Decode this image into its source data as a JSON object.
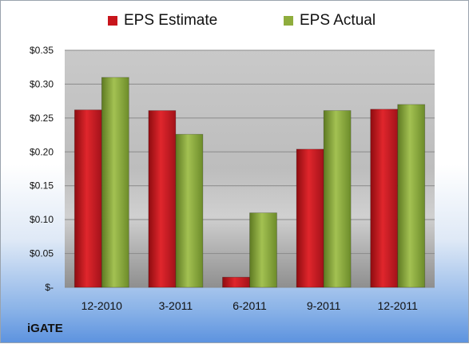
{
  "company_label": "iGATE",
  "chart_data": {
    "type": "bar",
    "categories": [
      "12-2010",
      "3-2011",
      "6-2011",
      "9-2011",
      "12-2011"
    ],
    "series": [
      {
        "name": "EPS Estimate",
        "color": "#c8151c",
        "values": [
          0.262,
          0.261,
          0.015,
          0.204,
          0.263
        ]
      },
      {
        "name": "EPS Actual",
        "color": "#8fad3d",
        "values": [
          0.31,
          0.226,
          0.11,
          0.261,
          0.27
        ]
      }
    ],
    "ylim": [
      0,
      0.35
    ],
    "yticks": [
      {
        "value": 0,
        "label": "$-"
      },
      {
        "value": 0.05,
        "label": "$0.05"
      },
      {
        "value": 0.1,
        "label": "$0.10"
      },
      {
        "value": 0.15,
        "label": "$0.15"
      },
      {
        "value": 0.2,
        "label": "$0.20"
      },
      {
        "value": 0.25,
        "label": "$0.25"
      },
      {
        "value": 0.3,
        "label": "$0.30"
      },
      {
        "value": 0.35,
        "label": "$0.35"
      }
    ],
    "grid": true,
    "legend": "top"
  }
}
